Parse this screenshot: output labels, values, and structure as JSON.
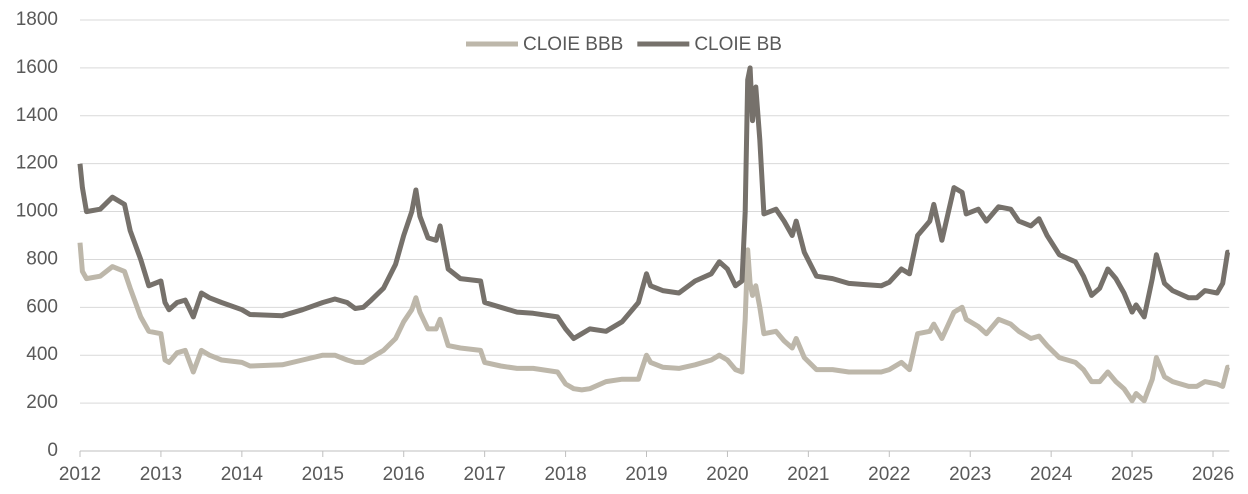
{
  "chart_data": {
    "type": "line",
    "x": [
      2012.0,
      2012.03,
      2012.08,
      2012.25,
      2012.4,
      2012.55,
      2012.62,
      2012.75,
      2012.85,
      2013.0,
      2013.05,
      2013.1,
      2013.2,
      2013.3,
      2013.4,
      2013.5,
      2013.6,
      2013.75,
      2014.0,
      2014.1,
      2014.5,
      2014.75,
      2015.0,
      2015.15,
      2015.3,
      2015.4,
      2015.5,
      2015.6,
      2015.75,
      2015.9,
      2016.0,
      2016.1,
      2016.15,
      2016.2,
      2016.3,
      2016.4,
      2016.45,
      2016.55,
      2016.7,
      2016.95,
      2017.0,
      2017.2,
      2017.4,
      2017.6,
      2017.9,
      2018.0,
      2018.1,
      2018.2,
      2018.3,
      2018.5,
      2018.7,
      2018.9,
      2019.0,
      2019.05,
      2019.2,
      2019.4,
      2019.6,
      2019.8,
      2019.9,
      2020.0,
      2020.1,
      2020.18,
      2020.22,
      2020.25,
      2020.28,
      2020.31,
      2020.35,
      2020.4,
      2020.45,
      2020.6,
      2020.7,
      2020.8,
      2020.85,
      2020.95,
      2021.1,
      2021.3,
      2021.5,
      2021.7,
      2021.9,
      2022.0,
      2022.15,
      2022.25,
      2022.35,
      2022.5,
      2022.55,
      2022.65,
      2022.8,
      2022.9,
      2022.95,
      2023.1,
      2023.2,
      2023.35,
      2023.5,
      2023.6,
      2023.75,
      2023.85,
      2023.95,
      2024.1,
      2024.3,
      2024.4,
      2024.5,
      2024.6,
      2024.7,
      2024.8,
      2024.9,
      2025.0,
      2025.05,
      2025.15,
      2025.25,
      2025.3,
      2025.4,
      2025.5,
      2025.7,
      2025.8,
      2025.9,
      2026.05,
      2026.12,
      2026.18,
      2026.2
    ],
    "series": [
      {
        "name": "CLOIE BBB",
        "color": "#bdb7aa",
        "values": [
          870,
          750,
          720,
          730,
          770,
          750,
          680,
          560,
          500,
          490,
          380,
          370,
          410,
          420,
          330,
          420,
          400,
          380,
          370,
          355,
          360,
          380,
          400,
          400,
          380,
          370,
          370,
          390,
          420,
          470,
          540,
          590,
          640,
          580,
          510,
          510,
          550,
          440,
          430,
          420,
          370,
          355,
          345,
          345,
          330,
          280,
          260,
          255,
          260,
          290,
          300,
          300,
          400,
          370,
          350,
          345,
          360,
          380,
          400,
          380,
          340,
          330,
          550,
          840,
          700,
          650,
          690,
          600,
          490,
          500,
          460,
          430,
          470,
          390,
          340,
          340,
          330,
          330,
          330,
          340,
          370,
          340,
          490,
          500,
          530,
          470,
          580,
          600,
          550,
          520,
          490,
          550,
          530,
          500,
          470,
          480,
          440,
          390,
          370,
          340,
          290,
          290,
          330,
          290,
          260,
          210,
          240,
          210,
          300,
          390,
          310,
          290,
          270,
          270,
          290,
          280,
          270,
          350,
          350
        ]
      },
      {
        "name": "CLOIE BB",
        "color": "#76716b",
        "values": [
          1200,
          1100,
          1000,
          1010,
          1060,
          1030,
          920,
          800,
          690,
          710,
          620,
          590,
          620,
          630,
          560,
          660,
          640,
          620,
          590,
          570,
          565,
          590,
          620,
          635,
          620,
          595,
          600,
          630,
          680,
          780,
          900,
          1000,
          1090,
          980,
          890,
          880,
          940,
          760,
          720,
          710,
          620,
          600,
          580,
          575,
          560,
          510,
          470,
          490,
          510,
          500,
          540,
          620,
          740,
          690,
          670,
          660,
          710,
          740,
          790,
          760,
          690,
          710,
          1000,
          1550,
          1600,
          1380,
          1520,
          1300,
          990,
          1010,
          960,
          900,
          960,
          830,
          730,
          720,
          700,
          695,
          690,
          705,
          760,
          740,
          900,
          960,
          1030,
          880,
          1100,
          1080,
          990,
          1010,
          960,
          1020,
          1010,
          960,
          940,
          970,
          900,
          820,
          790,
          730,
          650,
          680,
          760,
          720,
          660,
          580,
          610,
          560,
          720,
          820,
          700,
          670,
          640,
          640,
          670,
          660,
          700,
          830,
          830
        ]
      }
    ],
    "xlim": [
      2012,
      2026.2
    ],
    "xticks": [
      2012,
      2013,
      2014,
      2015,
      2016,
      2017,
      2018,
      2019,
      2020,
      2021,
      2022,
      2023,
      2024,
      2025,
      2026
    ],
    "ylim": [
      0,
      1800
    ],
    "yticks": [
      0,
      200,
      400,
      600,
      800,
      1000,
      1200,
      1400,
      1600,
      1800
    ],
    "grid": true,
    "legend": "top"
  }
}
